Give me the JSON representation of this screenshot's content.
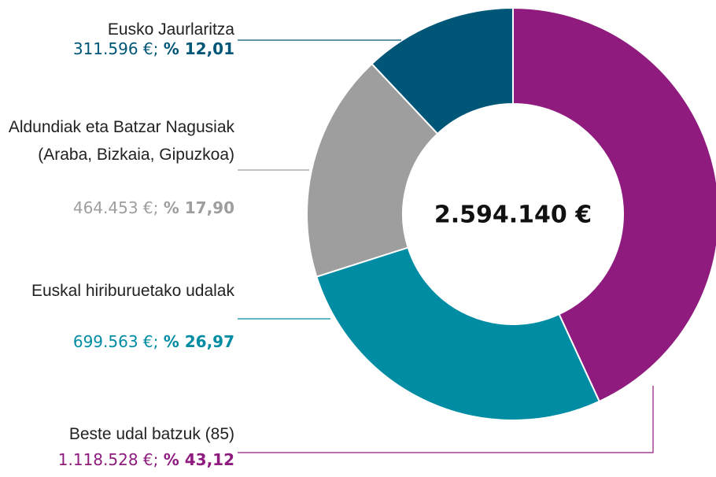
{
  "chart_data": {
    "type": "donut",
    "total": 2594140,
    "total_label": "2.594.140 €",
    "categories": [
      "Beste udal batzuk (85)",
      "Euskal hiriburuetako udalak",
      "Aldundiak eta Batzar Nagusiak (Araba, Bizkaia, Gipuzkoa)",
      "Eusko Jaurlaritza"
    ],
    "values": [
      1118528,
      699563,
      464453,
      311596
    ],
    "value_labels": [
      "1.118.528 €;",
      "699.563 €;",
      "464.453 €;",
      "311.596 €;"
    ],
    "percents": [
      43.12,
      26.97,
      17.9,
      12.01
    ],
    "percent_labels": [
      "% 43,12",
      "% 26,97",
      "% 17,90",
      "% 12,01"
    ],
    "colors": [
      "#8e1b7d",
      "#008ca3",
      "#9e9e9e",
      "#005677"
    ]
  }
}
